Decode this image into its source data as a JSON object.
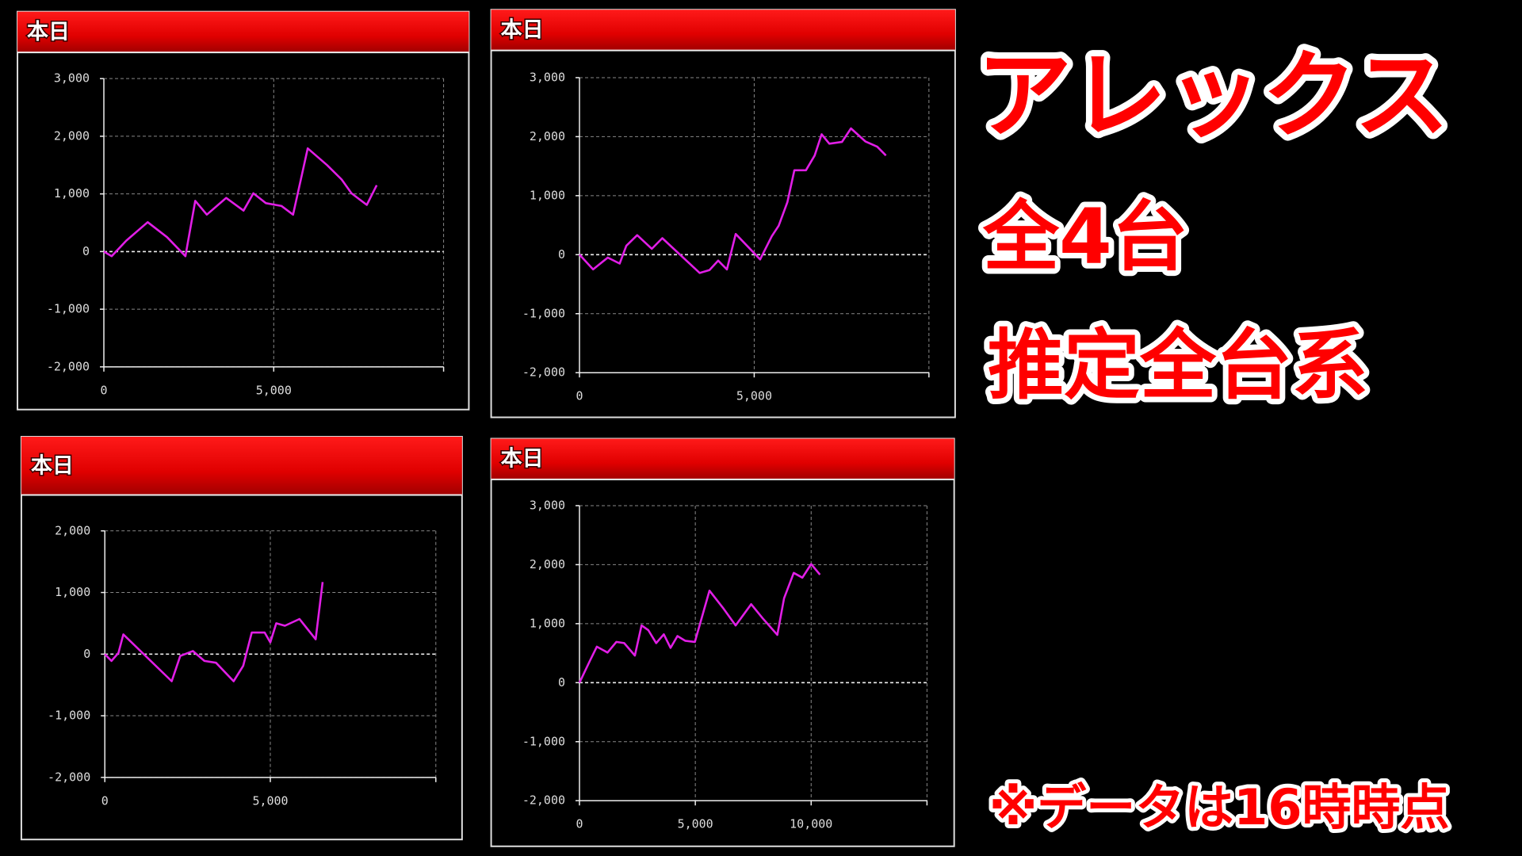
{
  "chart_data": [
    {
      "type": "line",
      "title": "本日",
      "color": "#e11ee6",
      "grid": true,
      "x": [
        0,
        230,
        660,
        1290,
        1860,
        2400,
        2690,
        3030,
        3600,
        4110,
        4400,
        4770,
        5230,
        5570,
        6000,
        6570,
        7000,
        7290,
        7740,
        8030
      ],
      "values": [
        0,
        -80,
        190,
        510,
        250,
        -80,
        880,
        640,
        930,
        710,
        1010,
        840,
        790,
        640,
        1790,
        1500,
        1250,
        1010,
        810,
        1150
      ],
      "xlim": [
        0,
        10000
      ],
      "ylim": [
        -2000,
        3000
      ],
      "xticks": [
        0,
        {
          "value": 5000,
          "label": "5,000"
        }
      ],
      "yticks": [
        {
          "value": -2000,
          "label": "-2,000"
        },
        {
          "value": -1000,
          "label": "-1,000"
        },
        0,
        {
          "value": 1000,
          "label": "1,000"
        },
        {
          "value": 2000,
          "label": "2,000"
        },
        {
          "value": 3000,
          "label": "3,000"
        }
      ]
    },
    {
      "type": "line",
      "title": "本日",
      "color": "#e11ee6",
      "grid": true,
      "x": [
        0,
        390,
        810,
        1150,
        1340,
        1650,
        2070,
        2370,
        3440,
        3720,
        3970,
        4220,
        4470,
        5170,
        5500,
        5700,
        5950,
        6150,
        6480,
        6730,
        6930,
        7150,
        7510,
        7770,
        8180,
        8520,
        8770
      ],
      "values": [
        0,
        -250,
        -50,
        -150,
        150,
        330,
        100,
        280,
        -310,
        -260,
        -100,
        -250,
        350,
        -80,
        310,
        490,
        890,
        1430,
        1430,
        1680,
        2040,
        1880,
        1910,
        2140,
        1920,
        1830,
        1680
      ],
      "xlim": [
        0,
        10000
      ],
      "ylim": [
        -2000,
        3000
      ],
      "xticks": [
        0,
        {
          "value": 5000,
          "label": "5,000"
        }
      ],
      "yticks": [
        {
          "value": -2000,
          "label": "-2,000"
        },
        {
          "value": -1000,
          "label": "-1,000"
        },
        0,
        {
          "value": 1000,
          "label": "1,000"
        },
        {
          "value": 2000,
          "label": "2,000"
        },
        {
          "value": 3000,
          "label": "3,000"
        }
      ]
    },
    {
      "type": "line",
      "title": "本日",
      "color": "#e11ee6",
      "grid": true,
      "x": [
        0,
        200,
        410,
        560,
        2020,
        2280,
        2660,
        3010,
        3360,
        3890,
        4180,
        4440,
        4830,
        5000,
        5180,
        5440,
        5880,
        6370,
        6580
      ],
      "values": [
        0,
        -110,
        20,
        320,
        -440,
        -30,
        50,
        -110,
        -140,
        -440,
        -190,
        350,
        350,
        190,
        500,
        460,
        570,
        240,
        1170
      ],
      "xlim": [
        0,
        10000
      ],
      "ylim": [
        -2000,
        2000
      ],
      "xticks": [
        0,
        {
          "value": 5000,
          "label": "5,000"
        }
      ],
      "yticks": [
        {
          "value": -2000,
          "label": "-2,000"
        },
        {
          "value": -1000,
          "label": "-1,000"
        },
        0,
        {
          "value": 1000,
          "label": "1,000"
        },
        {
          "value": 2000,
          "label": "2,000"
        }
      ]
    },
    {
      "type": "line",
      "title": "本日",
      "color": "#e11ee6",
      "grid": true,
      "x": [
        0,
        460,
        750,
        1210,
        1590,
        1930,
        2390,
        2680,
        2970,
        3310,
        3640,
        3930,
        4230,
        4560,
        4980,
        5610,
        6190,
        6740,
        7410,
        7910,
        8540,
        8830,
        9250,
        9620,
        10000,
        10380
      ],
      "values": [
        0,
        380,
        610,
        510,
        690,
        670,
        460,
        970,
        890,
        670,
        820,
        590,
        790,
        710,
        690,
        1560,
        1270,
        970,
        1330,
        1090,
        810,
        1430,
        1860,
        1780,
        2010,
        1830
      ],
      "xlim": [
        0,
        15000
      ],
      "ylim": [
        -2000,
        3000
      ],
      "xticks": [
        0,
        {
          "value": 5000,
          "label": "5,000"
        },
        {
          "value": 10000,
          "label": "10,000"
        }
      ],
      "yticks": [
        {
          "value": -2000,
          "label": "-2,000"
        },
        {
          "value": -1000,
          "label": "-1,000"
        },
        0,
        {
          "value": 1000,
          "label": "1,000"
        },
        {
          "value": 2000,
          "label": "2,000"
        },
        {
          "value": 3000,
          "label": "3,000"
        }
      ]
    }
  ],
  "overlay": {
    "title": "アレックス",
    "count": "全4台",
    "note": "推定全台系",
    "footnote": "※データは16時時点"
  }
}
